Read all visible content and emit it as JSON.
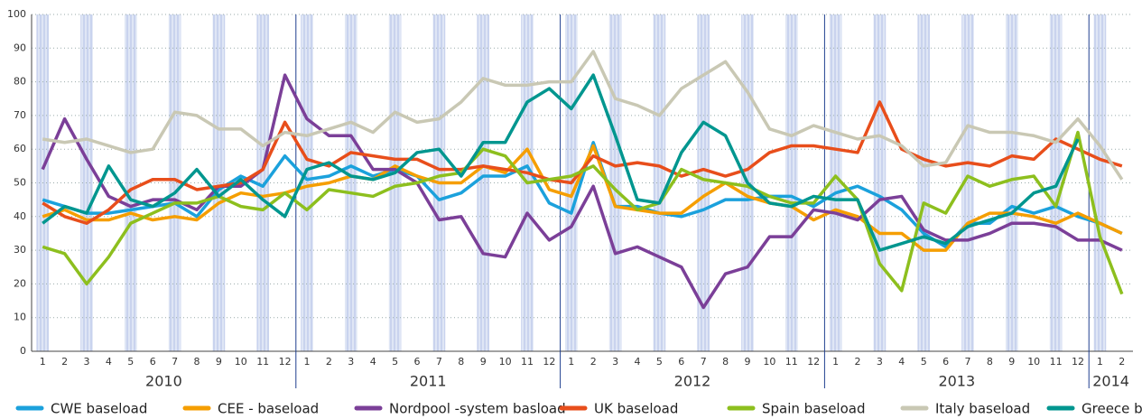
{
  "chart_data": {
    "type": "line",
    "categories": [
      "1",
      "2",
      "3",
      "4",
      "5",
      "6",
      "7",
      "8",
      "9",
      "10",
      "11",
      "12",
      "1",
      "2",
      "3",
      "4",
      "5",
      "6",
      "7",
      "8",
      "9",
      "10",
      "11",
      "12",
      "1",
      "2",
      "3",
      "4",
      "5",
      "6",
      "7",
      "8",
      "9",
      "10",
      "11",
      "12",
      "1",
      "2",
      "3",
      "4",
      "5",
      "6",
      "7",
      "8",
      "9",
      "10",
      "11",
      "12",
      "1",
      "2"
    ],
    "years": [
      "2010",
      "2011",
      "2012",
      "2013",
      "2014"
    ],
    "ylim": [
      0,
      100
    ],
    "yticks": [
      0,
      10,
      20,
      30,
      40,
      50,
      60,
      70,
      80,
      90,
      100
    ],
    "grid": true,
    "series": [
      {
        "name": "CWE baseload",
        "color": "#1ba1dc",
        "values": [
          45,
          43,
          41,
          41,
          42,
          43,
          44,
          40,
          48,
          52,
          49,
          58,
          51,
          52,
          55,
          52,
          54,
          52,
          45,
          47,
          52,
          52,
          55,
          44,
          41,
          62,
          43,
          43,
          41,
          40,
          42,
          45,
          45,
          46,
          46,
          43,
          47,
          49,
          46,
          42,
          35,
          31,
          38,
          38,
          43,
          41,
          43,
          40,
          38,
          35
        ]
      },
      {
        "name": "CEE - baseload",
        "color": "#f59e00",
        "values": [
          40,
          42,
          39,
          39,
          41,
          39,
          40,
          39,
          44,
          47,
          46,
          47,
          49,
          50,
          52,
          51,
          55,
          52,
          50,
          50,
          55,
          53,
          60,
          48,
          46,
          61,
          43,
          42,
          41,
          41,
          46,
          50,
          46,
          44,
          43,
          39,
          42,
          40,
          35,
          35,
          30,
          30,
          38,
          41,
          41,
          40,
          38,
          41,
          38,
          35
        ]
      },
      {
        "name": "Nordpool -system basload",
        "color": "#7b3f98",
        "values": [
          54,
          69,
          57,
          46,
          43,
          45,
          45,
          42,
          49,
          49,
          54,
          82,
          69,
          64,
          64,
          54,
          54,
          50,
          39,
          40,
          29,
          28,
          41,
          33,
          37,
          49,
          29,
          31,
          28,
          25,
          13,
          23,
          25,
          34,
          34,
          42,
          41,
          39,
          45,
          46,
          36,
          33,
          33,
          35,
          38,
          38,
          37,
          33,
          33,
          30
        ]
      },
      {
        "name": "UK baseload",
        "color": "#e84e1b",
        "values": [
          44,
          40,
          38,
          42,
          48,
          51,
          51,
          48,
          49,
          50,
          54,
          68,
          57,
          55,
          59,
          58,
          57,
          57,
          54,
          54,
          55,
          54,
          53,
          51,
          50,
          58,
          55,
          56,
          55,
          52,
          54,
          52,
          54,
          59,
          61,
          61,
          60,
          59,
          74,
          60,
          57,
          55,
          56,
          55,
          58,
          57,
          63,
          60,
          57,
          55
        ]
      },
      {
        "name": "Spain baseload",
        "color": "#8dbf1e",
        "values": [
          31,
          29,
          20,
          28,
          38,
          41,
          44,
          44,
          46,
          43,
          42,
          47,
          42,
          48,
          47,
          46,
          49,
          50,
          52,
          53,
          60,
          58,
          50,
          51,
          52,
          55,
          48,
          42,
          44,
          54,
          51,
          50,
          49,
          46,
          44,
          44,
          52,
          45,
          26,
          18,
          44,
          41,
          52,
          49,
          51,
          52,
          43,
          65,
          34,
          17
        ]
      },
      {
        "name": "Italy baseload",
        "color": "#c9c8b4",
        "values": [
          63,
          62,
          63,
          61,
          59,
          60,
          71,
          70,
          66,
          66,
          61,
          65,
          64,
          66,
          68,
          65,
          71,
          68,
          69,
          74,
          81,
          79,
          79,
          80,
          80,
          89,
          75,
          73,
          70,
          78,
          82,
          86,
          77,
          66,
          64,
          67,
          65,
          63,
          64,
          61,
          55,
          56,
          67,
          65,
          65,
          64,
          62,
          69,
          61,
          51
        ]
      },
      {
        "name": "Greece baseload",
        "color": "#00968f",
        "values": [
          38,
          43,
          41,
          55,
          45,
          43,
          47,
          54,
          46,
          51,
          45,
          40,
          54,
          56,
          52,
          51,
          53,
          59,
          60,
          52,
          62,
          62,
          74,
          78,
          72,
          82,
          64,
          45,
          44,
          59,
          68,
          64,
          50,
          44,
          43,
          46,
          45,
          45,
          30,
          32,
          34,
          32,
          37,
          39,
          41,
          47,
          49,
          63,
          null,
          null
        ]
      }
    ]
  }
}
